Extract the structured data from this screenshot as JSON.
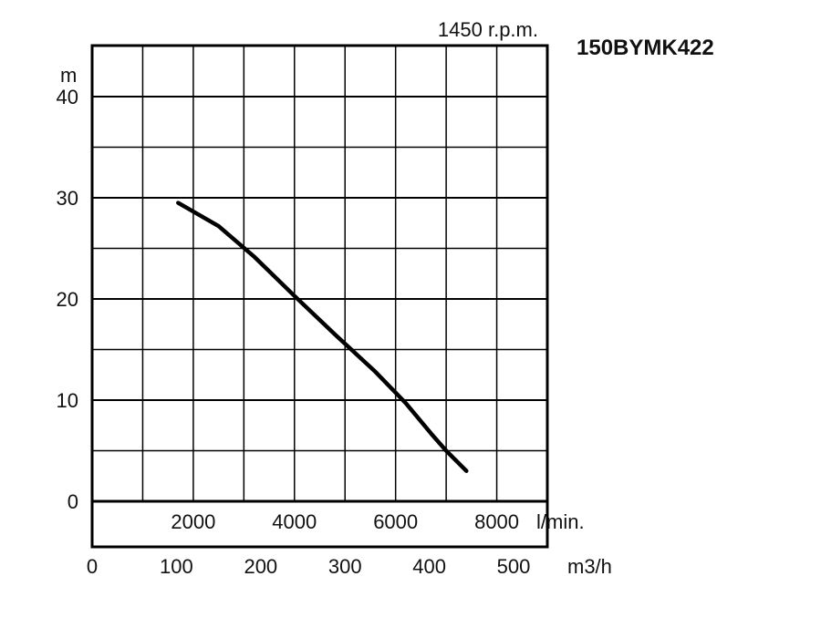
{
  "chart_data": {
    "type": "line",
    "title": "150BYMK422",
    "subtitle": "1450 r.p.m.",
    "ylabel": "m",
    "ylim": [
      0,
      45
    ],
    "y_ticks": [
      0,
      10,
      20,
      30,
      40
    ],
    "x_lpm_ticks": [
      "2000",
      "4000",
      "6000",
      "8000"
    ],
    "x_lpm_unit": "l/min.",
    "x_m3h_ticks": [
      "0",
      "100",
      "200",
      "300",
      "400",
      "500"
    ],
    "x_m3h_unit": "m3/h",
    "xlim_lpm": [
      0,
      9000
    ],
    "grid": true,
    "series": [
      {
        "x": [
          1700,
          2500,
          3200,
          4000,
          4800,
          5600,
          6200,
          6700,
          7000,
          7400
        ],
        "y": [
          29.5,
          27.2,
          24.2,
          20.3,
          16.5,
          12.8,
          9.7,
          6.7,
          5.0,
          3.0
        ]
      }
    ]
  },
  "colors": {
    "line": "#000000",
    "background": "#ffffff"
  }
}
